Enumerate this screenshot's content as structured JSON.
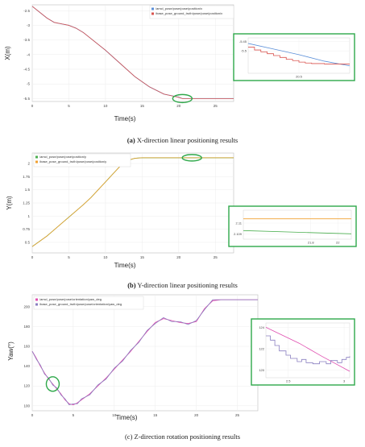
{
  "panels": [
    {
      "caption_letter": "(a)",
      "caption_text": " X-direction linear positioning results",
      "chart_data": {
        "type": "line",
        "xlabel": "Time(s)",
        "ylabel": "X(m)",
        "xlim": [
          0,
          27.5
        ],
        "ylim": [
          -5.6,
          -2.3
        ],
        "xticks": [
          0,
          5,
          10,
          15,
          20,
          25
        ],
        "yticks": [
          -2.5,
          -3,
          -3.5,
          -4,
          -4.5,
          -5,
          -5.5
        ],
        "ytick_labels": [
          "-2.5",
          "-3",
          "-3.5",
          "-4",
          "-4.5",
          "-5",
          "-5.5"
        ],
        "grid": true,
        "legend_position": "top-right",
        "series": [
          {
            "name": "/amcl_pose/pose/pose/position/x",
            "color": "#5b8fd8",
            "x": [
              0,
              1,
              2,
              3,
              4,
              5,
              6,
              7,
              8,
              10,
              12,
              14,
              16,
              18,
              20,
              20.5,
              21,
              27.5
            ],
            "y": [
              -2.35,
              -2.55,
              -2.75,
              -2.9,
              -2.95,
              -3.0,
              -3.1,
              -3.25,
              -3.45,
              -3.85,
              -4.3,
              -4.75,
              -5.1,
              -5.35,
              -5.45,
              -5.5,
              -5.5,
              -5.5
            ]
          },
          {
            "name": "/base_pose_ground_truth/pose/pose/position/x",
            "color": "#d9534f",
            "x": [
              0,
              1,
              2,
              3,
              4,
              5,
              6,
              7,
              8,
              10,
              12,
              14,
              16,
              18,
              20,
              20.5,
              21,
              27.5
            ],
            "y": [
              -2.35,
              -2.55,
              -2.75,
              -2.9,
              -2.95,
              -3.0,
              -3.1,
              -3.25,
              -3.45,
              -3.85,
              -4.3,
              -4.75,
              -5.1,
              -5.35,
              -5.46,
              -5.5,
              -5.5,
              -5.5
            ]
          }
        ],
        "highlight": {
          "x": 20.5,
          "y": -5.5
        },
        "inset": {
          "xlim": [
            20.1,
            20.9
          ],
          "ylim": [
            -5.62,
            -5.43
          ],
          "xticks": [
            20.5
          ],
          "yticks": [
            -5.45,
            -5.5
          ],
          "series": [
            {
              "name": "/amcl_pose/pose/pose/position/x",
              "color": "#5b8fd8",
              "x": [
                20.1,
                20.3,
                20.5,
                20.7,
                20.9
              ],
              "y": [
                -5.46,
                -5.49,
                -5.52,
                -5.555,
                -5.58
              ]
            },
            {
              "name": "/base_pose_ground_truth/pose/pose/position/x",
              "color": "#d9534f",
              "step": true,
              "x": [
                20.1,
                20.15,
                20.2,
                20.25,
                20.3,
                20.35,
                20.4,
                20.45,
                20.5,
                20.55,
                20.6,
                20.7,
                20.9
              ],
              "y": [
                -5.48,
                -5.495,
                -5.505,
                -5.515,
                -5.525,
                -5.535,
                -5.545,
                -5.552,
                -5.56,
                -5.565,
                -5.568,
                -5.57,
                -5.57
              ]
            }
          ]
        }
      }
    },
    {
      "caption_letter": "(b)",
      "caption_text": " Y-direction linear positioning results",
      "chart_data": {
        "type": "line",
        "xlabel": "Time(s)",
        "ylabel": "Y(m)",
        "xlim": [
          0,
          27.5
        ],
        "ylim": [
          0.3,
          2.2
        ],
        "xticks": [
          0,
          5,
          10,
          15,
          20,
          25
        ],
        "yticks": [
          2,
          1.75,
          1.5,
          1.25,
          1,
          0.75,
          0.5
        ],
        "ytick_labels": [
          "2",
          "1.75",
          "1.5",
          "1.25",
          "1",
          "0.75",
          "0.5"
        ],
        "grid": true,
        "legend_position": "top-left",
        "series": [
          {
            "name": "/amcl_pose/pose/pose/position/y",
            "color": "#4caf50",
            "x": [
              0,
              1,
              2,
              3,
              4,
              5,
              6,
              7,
              8,
              9,
              10,
              11,
              12,
              13,
              14,
              15,
              20,
              27.5
            ],
            "y": [
              0.42,
              0.52,
              0.62,
              0.74,
              0.86,
              0.98,
              1.1,
              1.22,
              1.35,
              1.5,
              1.65,
              1.8,
              1.95,
              2.06,
              2.1,
              2.11,
              2.11,
              2.11
            ]
          },
          {
            "name": "/base_pose_ground_truth/pose/pose/position/y",
            "color": "#f0a030",
            "x": [
              0,
              1,
              2,
              3,
              4,
              5,
              6,
              7,
              8,
              9,
              10,
              11,
              12,
              13,
              14,
              15,
              20,
              27.5
            ],
            "y": [
              0.42,
              0.52,
              0.62,
              0.74,
              0.86,
              0.98,
              1.1,
              1.22,
              1.35,
              1.5,
              1.65,
              1.8,
              1.95,
              2.06,
              2.1,
              2.11,
              2.11,
              2.11
            ]
          }
        ],
        "highlight": {
          "x": 21.8,
          "y": 2.11
        },
        "inset": {
          "xlim": [
            21.3,
            22.1
          ],
          "ylim": [
            2.1085,
            2.1112
          ],
          "xticks": [
            21.8,
            22
          ],
          "yticks": [
            2.109,
            2.11
          ],
          "ytick_labels": [
            "2.109",
            "2.11"
          ],
          "series": [
            {
              "name": "/amcl_pose/pose/pose/position/y",
              "color": "#4caf50",
              "x": [
                21.3,
                22.1
              ],
              "y": [
                2.1093,
                2.109
              ]
            },
            {
              "name": "/base_pose_ground_truth/pose/pose/position/y",
              "color": "#f0a030",
              "x": [
                21.3,
                22.1
              ],
              "y": [
                2.1104,
                2.1104
              ]
            }
          ]
        }
      }
    },
    {
      "caption_letter": "(c)",
      "caption_text": " Z-direction rotation positioning results",
      "chart_data": {
        "type": "line",
        "xlabel": "Time(s)",
        "ylabel": "Yaw(°)",
        "xlim": [
          0,
          27.5
        ],
        "ylim": [
          95,
          212
        ],
        "xticks": [
          0,
          5,
          10,
          15,
          20,
          25
        ],
        "yticks": [
          200,
          180,
          160,
          140,
          120,
          100
        ],
        "ytick_labels": [
          "200",
          "180",
          "160",
          "140",
          "120",
          "100"
        ],
        "grid": true,
        "legend_position": "top-left",
        "series": [
          {
            "name": "/amcl_pose/pose/pose/orientation/yaw_deg",
            "color": "#e04fb0",
            "x": [
              0,
              0.5,
              1,
              1.5,
              2,
              2.5,
              3,
              3.5,
              4,
              4.5,
              5,
              5.5,
              6,
              7,
              8,
              9,
              10,
              11,
              12,
              13,
              14,
              15,
              16,
              17,
              18,
              19,
              20,
              21,
              22,
              23,
              27.5
            ],
            "y": [
              155,
              148,
              140,
              133,
              127,
              122,
              117,
              112,
              106,
              102,
              101,
              103,
              106,
              112,
              120,
              128,
              137,
              146,
              155,
              165,
              175,
              184,
              188,
              186,
              184,
              183,
              185,
              198,
              206,
              207,
              207
            ]
          },
          {
            "name": "/base_pose_ground_truth/pose/pose/orientation/yaw_deg",
            "color": "#8a7fc0",
            "x": [
              0,
              0.5,
              1,
              1.5,
              2,
              2.5,
              3,
              3.5,
              4,
              4.5,
              5,
              5.5,
              6,
              7,
              8,
              9,
              10,
              11,
              12,
              13,
              14,
              15,
              16,
              17,
              18,
              19,
              20,
              21,
              22,
              23,
              27.5
            ],
            "y": [
              155,
              147,
              141,
              132,
              128,
              121,
              118,
              111,
              107,
              101,
              102,
              102,
              107,
              111,
              121,
              127,
              138,
              145,
              156,
              164,
              176,
              183,
              189,
              185,
              185,
              182,
              186,
              197,
              207,
              207,
              207
            ]
          }
        ],
        "highlight": {
          "x": 2.5,
          "y": 122
        },
        "inset": {
          "xlim": [
            2.3,
            3.05
          ],
          "ylim": [
            119.3,
            124.4
          ],
          "xticks": [
            2.5,
            3
          ],
          "yticks": [
            124,
            122,
            120
          ],
          "ytick_labels": [
            "124",
            "122",
            "120"
          ],
          "series": [
            {
              "name": "/amcl_pose/pose/pose/orientation/yaw_deg",
              "color": "#e04fb0",
              "x": [
                2.3,
                2.6,
                2.8,
                3.05
              ],
              "y": [
                124.0,
                122.5,
                121.3,
                119.9
              ]
            },
            {
              "name": "/base_pose_ground_truth/pose/pose/orientation/yaw_deg",
              "color": "#8a7fc0",
              "step": true,
              "x": [
                2.3,
                2.34,
                2.38,
                2.42,
                2.48,
                2.52,
                2.58,
                2.62,
                2.66,
                2.72,
                2.78,
                2.84,
                2.88,
                2.94,
                2.98,
                3.02,
                3.05
              ],
              "y": [
                123.2,
                122.8,
                122.3,
                121.8,
                121.4,
                121.1,
                120.8,
                121.0,
                120.7,
                120.6,
                120.8,
                120.6,
                120.9,
                120.7,
                121.0,
                121.2,
                121.3
              ]
            }
          ]
        }
      }
    }
  ]
}
